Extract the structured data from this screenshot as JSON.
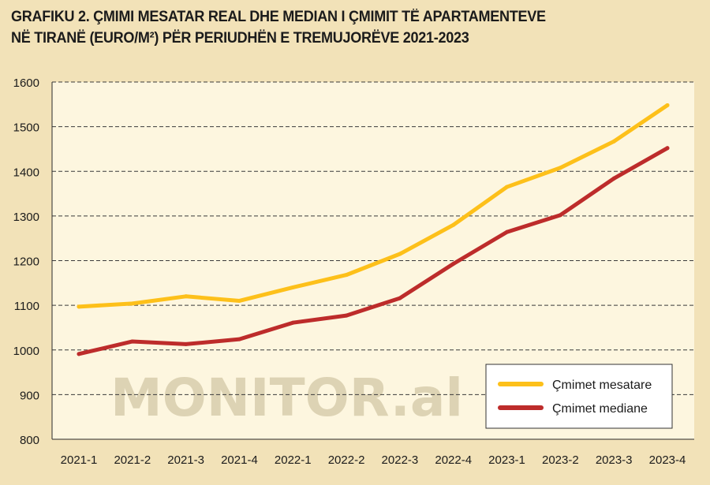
{
  "title": {
    "line1": "GRAFIKU 2. ÇMIMI MESATAR REAL DHE MEDIAN I ÇMIMIT TË APARTAMENTEVE",
    "line2": "NË TIRANË (EURO/M²) PËR PERIUDHËN E TREMUJORËVE 2021-2023"
  },
  "watermark": "MONITOR.al",
  "colors": {
    "background": "#f2e2b8",
    "plot_background": "#fdf6df",
    "mesatare": "#fdc01a",
    "mediane": "#bd2c2b"
  },
  "chart_data": {
    "type": "line",
    "x": [
      "2021-1",
      "2021-2",
      "2021-3",
      "2021-4",
      "2022-1",
      "2022-2",
      "2022-3",
      "2022-4",
      "2023-1",
      "2023-2",
      "2023-3",
      "2023-4"
    ],
    "series": [
      {
        "name": "Çmimet mesatare",
        "values": [
          1097,
          1104,
          1120,
          1110,
          1140,
          1168,
          1215,
          1280,
          1365,
          1408,
          1467,
          1548
        ]
      },
      {
        "name": "Çmimet mediane",
        "values": [
          991,
          1019,
          1013,
          1024,
          1061,
          1077,
          1116,
          1193,
          1264,
          1302,
          1384,
          1452
        ]
      }
    ],
    "ylim": [
      800,
      1600
    ],
    "yticks": [
      800,
      900,
      1000,
      1100,
      1200,
      1300,
      1400,
      1500,
      1600
    ],
    "grid": true,
    "legend_position": "bottom-right"
  }
}
